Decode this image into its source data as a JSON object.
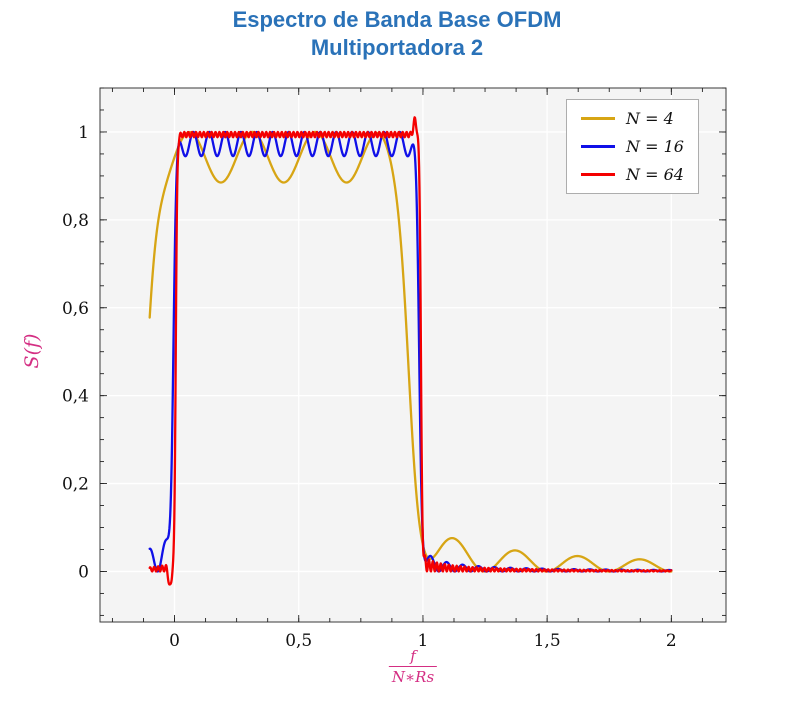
{
  "title": {
    "line1": "Espectro de Banda Base OFDM",
    "line2": "Multiportadora 2",
    "color": "#2a72b8"
  },
  "axes": {
    "x": {
      "label_numerator": "f",
      "label_denominator": "N∗Rs",
      "label_color": "#d42e83",
      "min": -0.3,
      "max": 2.22,
      "minor_step": 0.125,
      "ticks": [
        {
          "v": 0,
          "label": "0"
        },
        {
          "v": 0.5,
          "label": "0,5"
        },
        {
          "v": 1,
          "label": "1"
        },
        {
          "v": 1.5,
          "label": "1,5"
        },
        {
          "v": 2,
          "label": "2"
        }
      ]
    },
    "y": {
      "label": "S(f)",
      "label_color": "#d42e83",
      "min": -0.115,
      "max": 1.1,
      "minor_step": 0.05,
      "ticks": [
        {
          "v": 0,
          "label": "0"
        },
        {
          "v": 0.2,
          "label": "0,2"
        },
        {
          "v": 0.4,
          "label": "0,4"
        },
        {
          "v": 0.6,
          "label": "0,6"
        },
        {
          "v": 0.8,
          "label": "0,8"
        },
        {
          "v": 1,
          "label": "1"
        }
      ]
    }
  },
  "legend": {
    "items": [
      {
        "label": "N = 4",
        "color": "#d7a514"
      },
      {
        "label": "N = 16",
        "color": "#1010e8"
      },
      {
        "label": "N = 64",
        "color": "#f40000"
      }
    ]
  },
  "plot": {
    "bg": "#f4f4f4",
    "grid_color": "#ffffff",
    "frame_color": "#3a3a3a",
    "tick_color": "#222222",
    "outer_bg": "#ffffff"
  },
  "chart_data": {
    "type": "line",
    "title": "Espectro de Banda Base OFDM Multiportadora 2",
    "xlabel": "f/(N*Rs)",
    "ylabel": "S(f)",
    "xlim": [
      -0.3,
      2.22
    ],
    "ylim": [
      -0.115,
      1.1
    ],
    "x_range_data": [
      -0.1,
      2.0
    ],
    "grid": true,
    "legend_position": "top-right",
    "model": "OFDM baseband power spectrum: flat passband over normalized frequency 0..1 with N scalloping ripples (peak 1.0), steep band edges that sharpen as N grows, and decaying sidelobes beyond f/(N*Rs)=1",
    "series": [
      {
        "name": "N = 4",
        "N": 4,
        "color": "#d7a514",
        "plateau": [
          -0.112,
          0.944
        ],
        "edge_width": 0.042,
        "ripple_depth": 0.115,
        "ripple_period": 0.253,
        "ripple_phase": 0.06,
        "right_sidelobe": {
          "start": 1.0,
          "amp": 0.105,
          "period": 0.25,
          "decay": 0.8
        },
        "left_sidelobe": {
          "start": -0.2,
          "amp": 0.0,
          "period": 0.25,
          "decay": 1.0
        },
        "overshoots": []
      },
      {
        "name": "N = 16",
        "N": 16,
        "color": "#1010e8",
        "plateau": [
          -0.005,
          0.985
        ],
        "edge_width": 0.012,
        "ripple_depth": 0.055,
        "ripple_period": 0.0639,
        "ripple_phase": 0.012,
        "right_sidelobe": {
          "start": 1.0,
          "amp": 0.05,
          "period": 0.064,
          "decay": 0.9
        },
        "left_sidelobe": {
          "start": -0.005,
          "amp": 0.075,
          "period": 0.063,
          "decay": 0.3
        },
        "overshoots": []
      },
      {
        "name": "N = 64",
        "N": 64,
        "color": "#f40000",
        "plateau": [
          0.005,
          0.992
        ],
        "edge_width": 0.006,
        "ripple_depth": 0.012,
        "ripple_period": 0.0157,
        "ripple_phase": 0.008,
        "right_sidelobe": {
          "start": 1.0,
          "amp": 0.035,
          "period": 0.016,
          "decay": 0.2
        },
        "left_sidelobe": {
          "start": -0.01,
          "amp": 0.02,
          "period": 0.016,
          "decay": 0.2
        },
        "overshoots": [
          {
            "x": 0.968,
            "amp": 0.035,
            "sigma": 0.008
          },
          {
            "x": -0.018,
            "amp": -0.048,
            "sigma": 0.008
          }
        ]
      }
    ]
  }
}
